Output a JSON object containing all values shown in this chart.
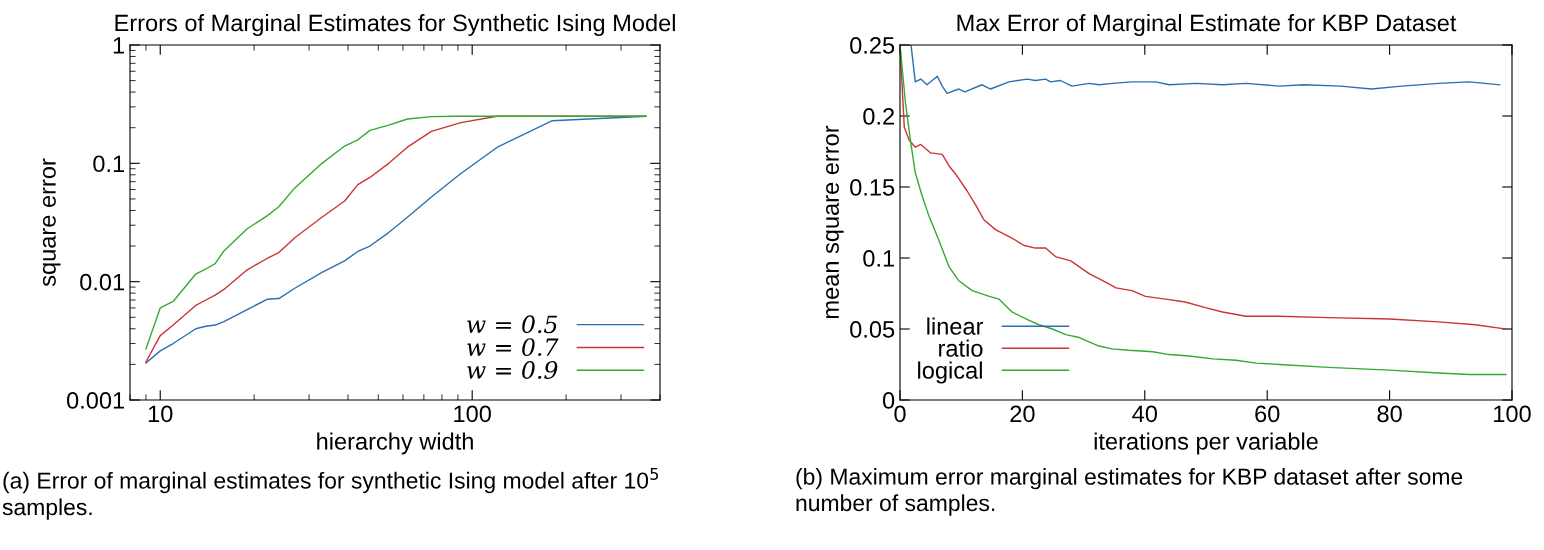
{
  "chart_data": [
    {
      "type": "line",
      "title": "Errors of Marginal Estimates for Synthetic Ising Model",
      "xlabel": "hierarchy width",
      "ylabel": "square error",
      "log": "xy",
      "xlim": [
        8,
        400
      ],
      "xticks": [
        10,
        100
      ],
      "ylim": [
        0.001,
        1
      ],
      "yticks": [
        0.001,
        0.01,
        0.1,
        1
      ],
      "legend": "bottom right",
      "grid": false,
      "series": [
        {
          "name": "w = 0.5",
          "color": "#2c6fb0",
          "x": [
            9,
            10,
            11,
            13,
            14,
            15,
            16,
            19,
            22,
            24,
            27,
            33,
            39,
            43,
            47,
            54,
            62,
            74,
            92,
            121,
            180,
            360
          ],
          "values": [
            0.00205,
            0.0026,
            0.003,
            0.004,
            0.0042,
            0.0043,
            0.0046,
            0.0058,
            0.0071,
            0.0072,
            0.0088,
            0.012,
            0.015,
            0.018,
            0.02,
            0.026,
            0.035,
            0.052,
            0.082,
            0.138,
            0.229,
            0.25
          ]
        },
        {
          "name": "w = 0.7",
          "color": "#cc3333",
          "x": [
            9,
            10,
            11,
            13,
            14,
            15,
            16,
            19,
            22,
            24,
            27,
            33,
            39,
            43,
            47,
            54,
            62,
            74,
            92,
            120,
            360
          ],
          "values": [
            0.0021,
            0.0035,
            0.0043,
            0.0063,
            0.007,
            0.0077,
            0.0086,
            0.0126,
            0.0157,
            0.0176,
            0.0235,
            0.035,
            0.048,
            0.066,
            0.076,
            0.1,
            0.137,
            0.186,
            0.221,
            0.25,
            0.25
          ]
        },
        {
          "name": "w = 0.9",
          "color": "#33aa33",
          "x": [
            9,
            10,
            11,
            13,
            14,
            15,
            16,
            19,
            22,
            24,
            27,
            33,
            39,
            43,
            47,
            54,
            62,
            74,
            88,
            360
          ],
          "values": [
            0.0027,
            0.006,
            0.0068,
            0.0116,
            0.0128,
            0.0142,
            0.0182,
            0.028,
            0.036,
            0.043,
            0.062,
            0.1,
            0.14,
            0.158,
            0.19,
            0.21,
            0.237,
            0.248,
            0.25,
            0.25
          ]
        }
      ],
      "annotations": [
        "(a) Error of marginal estimates for synthetic Ising model after 10$^{5}$ samples."
      ]
    },
    {
      "type": "line",
      "title": "Max Error of Marginal Estimate for KBP Dataset",
      "xlabel": "iterations per variable",
      "ylabel": "mean square error",
      "xlim": [
        0,
        100
      ],
      "xticks": [
        0,
        20,
        40,
        60,
        80,
        100
      ],
      "ylim": [
        0,
        0.25
      ],
      "yticks": [
        0,
        0.05,
        0.1,
        0.15,
        0.2,
        0.25
      ],
      "legend": "bottom left",
      "grid": false,
      "series": [
        {
          "name": "linear",
          "color": "#2c6fb0",
          "x": [
            1.8,
            2.5,
            3.4,
            4.4,
            6.1,
            6.9,
            7.7,
            9.6,
            10.6,
            13.4,
            14.8,
            17.8,
            20.8,
            22.1,
            23.8,
            24.6,
            26.2,
            28.1,
            30.9,
            32.5,
            34.7,
            37.9,
            39.6,
            41.8,
            44,
            48.4,
            52.7,
            56.5,
            62,
            66,
            72,
            77,
            82,
            88,
            93,
            98
          ],
          "values": [
            0.25,
            0.224,
            0.226,
            0.222,
            0.228,
            0.221,
            0.216,
            0.219,
            0.217,
            0.222,
            0.219,
            0.224,
            0.226,
            0.225,
            0.226,
            0.224,
            0.225,
            0.221,
            0.223,
            0.222,
            0.223,
            0.224,
            0.224,
            0.224,
            0.222,
            0.223,
            0.222,
            0.223,
            0.221,
            0.222,
            0.221,
            0.219,
            0.221,
            0.223,
            0.224,
            0.222
          ]
        },
        {
          "name": "ratio",
          "color": "#cc3333",
          "x": [
            0,
            0.7,
            1.5,
            2.5,
            3.4,
            5,
            6.9,
            8,
            9.1,
            11,
            12.4,
            13.7,
            15.6,
            18.3,
            20.2,
            22.1,
            23.8,
            25.4,
            27.9,
            30.9,
            33.6,
            35.3,
            37.9,
            40.1,
            43.4,
            46.6,
            49.9,
            52.7,
            56.5,
            62,
            70,
            80,
            88,
            94,
            99
          ],
          "values": [
            0.25,
            0.192,
            0.183,
            0.178,
            0.18,
            0.174,
            0.173,
            0.165,
            0.159,
            0.147,
            0.137,
            0.127,
            0.12,
            0.114,
            0.109,
            0.107,
            0.107,
            0.101,
            0.098,
            0.089,
            0.083,
            0.079,
            0.077,
            0.073,
            0.071,
            0.069,
            0.065,
            0.062,
            0.059,
            0.059,
            0.058,
            0.057,
            0.055,
            0.053,
            0.05
          ]
        },
        {
          "name": "logical",
          "color": "#33aa33",
          "x": [
            0,
            0.9,
            1.7,
            2.5,
            3.6,
            4.7,
            6.3,
            8,
            9.6,
            11.8,
            14.6,
            16.2,
            18.3,
            21.1,
            22.7,
            24.9,
            27.1,
            29.3,
            32.5,
            34.7,
            37.4,
            41.3,
            44,
            47.3,
            51.1,
            54.9,
            58.2,
            62,
            70,
            80,
            88,
            93,
            99
          ],
          "values": [
            0.25,
            0.209,
            0.183,
            0.16,
            0.144,
            0.13,
            0.113,
            0.094,
            0.084,
            0.077,
            0.073,
            0.071,
            0.062,
            0.056,
            0.053,
            0.05,
            0.046,
            0.044,
            0.038,
            0.036,
            0.035,
            0.034,
            0.032,
            0.031,
            0.029,
            0.028,
            0.026,
            0.025,
            0.023,
            0.021,
            0.019,
            0.018,
            0.018
          ]
        }
      ],
      "annotations": [
        "(b) Maximum error marginal estimates for KBP dataset after some number of samples."
      ]
    }
  ]
}
